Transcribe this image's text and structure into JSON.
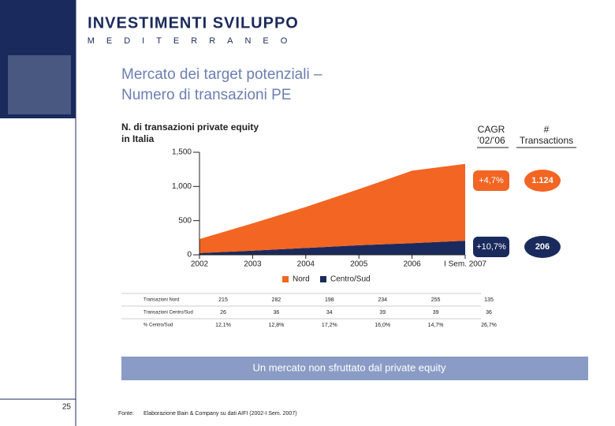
{
  "header": {
    "logo_top": "INVESTIMENTI SVILUPPO",
    "logo_bottom": "MEDITERRANEO",
    "title": [
      "Mercato dei target potenziali –",
      "Numero di transazioni PE"
    ]
  },
  "chart_data": {
    "type": "stacked-area",
    "subtitle": [
      "N. di transazioni private equity",
      "in Italia"
    ],
    "categories": [
      "2002",
      "2003",
      "2004",
      "2005",
      "2006",
      "I Sem. 2007"
    ],
    "series": [
      {
        "name": "Centro/Sud",
        "color": "#1b2a5c",
        "values": [
          25,
          60,
          100,
          140,
          170,
          206
        ]
      },
      {
        "name": "Nord",
        "color": "#f26522",
        "values": [
          205,
          400,
          600,
          820,
          1060,
          1124
        ]
      }
    ],
    "ylim": [
      0,
      1500
    ],
    "yticks": [
      0,
      500,
      {
        "value": 1000,
        "label": "1,000"
      },
      {
        "value": 1500,
        "label": "1,500"
      }
    ],
    "legend_order": [
      1,
      0
    ]
  },
  "summary": {
    "headers": [
      [
        "CAGR",
        "’02/’06"
      ],
      [
        "#",
        "Transactions"
      ]
    ],
    "rows": [
      {
        "cagr": "+4,7%",
        "transactions": "1.124"
      },
      {
        "cagr": "+10,7%",
        "transactions": "206"
      }
    ]
  },
  "table": {
    "rows": [
      [
        "Transazioni Nord",
        "215",
        "282",
        "198",
        "234",
        "255",
        "135"
      ],
      [
        "Transazioni Centro/Sud",
        "26",
        "36",
        "34",
        "39",
        "39",
        "36"
      ],
      [
        "% Centro/Sud",
        "12,1%",
        "12,8%",
        "17,2%",
        "16,0%",
        "14,7%",
        "26,7%"
      ]
    ]
  },
  "banner": "Un mercato non sfruttato dal private equity",
  "footer": {
    "page": "25",
    "source_label": "Fonte:",
    "source": "Elaborazione Bain & Company su dati AIFI (2002-I Sem. 2007)"
  }
}
